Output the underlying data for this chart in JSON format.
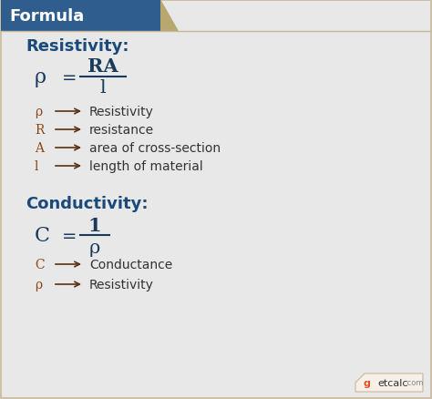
{
  "bg_color": "#e8e8e8",
  "header_bg": "#2e5d8e",
  "header_text": "Formula",
  "header_text_color": "#ffffff",
  "header_notch_color": "#b8a870",
  "section1_title": "Resistivity:",
  "section2_title": "Conductivity:",
  "section_title_color": "#1a4a7a",
  "formula1_lhs": "ρ",
  "formula1_eq": "=",
  "formula1_num": "RA",
  "formula1_den": "l",
  "formula2_lhs": "C",
  "formula2_eq": "=",
  "formula2_num": "1",
  "formula2_den": "ρ",
  "formula_color": "#1a3a5c",
  "legend1": [
    [
      "ρ",
      "Resistivity"
    ],
    [
      "R",
      "resistance"
    ],
    [
      "A",
      "area of cross-section"
    ],
    [
      "l",
      "length of material"
    ]
  ],
  "legend2": [
    [
      "C",
      "Conductance"
    ],
    [
      "ρ",
      "Resistivity"
    ]
  ],
  "legend_symbol_color": "#8B4513",
  "legend_text_color": "#333333",
  "arrow_color": "#5a3010",
  "border_color": "#c8b89a",
  "watermark_text": "getcalc",
  "watermark_com": ".com",
  "watermark_g_color": "#e05020",
  "watermark_text_color": "#555555"
}
